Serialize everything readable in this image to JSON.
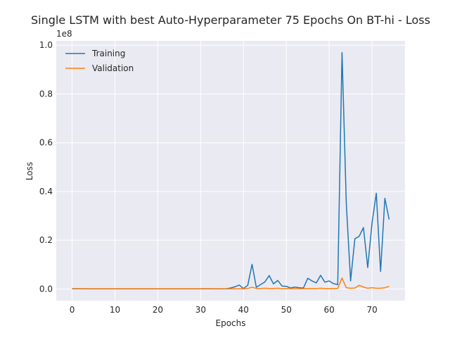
{
  "chart_data": {
    "type": "line",
    "title": "Single LSTM with best Auto-Hyperparameter 75 Epochs On BT-hi - Loss",
    "xlabel": "Epochs",
    "ylabel": "Loss",
    "offset_label": "1e8",
    "xlim": [
      -3.7,
      77.7
    ],
    "ylim": [
      -0.048,
      1.018
    ],
    "x_ticks": [
      0,
      10,
      20,
      30,
      40,
      50,
      60,
      70
    ],
    "y_ticks": [
      0.0,
      0.2,
      0.4,
      0.6,
      0.8,
      1.0
    ],
    "y_tick_labels": [
      "0.0",
      "0.2",
      "0.4",
      "0.6",
      "0.8",
      "1.0"
    ],
    "grid": true,
    "legend_position": "top-left",
    "colors": {
      "background": "#eaeaf2",
      "grid": "#ffffff"
    },
    "x": [
      0,
      1,
      2,
      3,
      4,
      5,
      6,
      7,
      8,
      9,
      10,
      11,
      12,
      13,
      14,
      15,
      16,
      17,
      18,
      19,
      20,
      21,
      22,
      23,
      24,
      25,
      26,
      27,
      28,
      29,
      30,
      31,
      32,
      33,
      34,
      35,
      36,
      37,
      38,
      39,
      40,
      41,
      42,
      43,
      44,
      45,
      46,
      47,
      48,
      49,
      50,
      51,
      52,
      53,
      54,
      55,
      56,
      57,
      58,
      59,
      60,
      61,
      62,
      63,
      64,
      65,
      66,
      67,
      68,
      69,
      70,
      71,
      72,
      73,
      74
    ],
    "series": [
      {
        "name": "Training",
        "color": "#1f77b4",
        "values": [
          0.0015,
          0.0012,
          0.001,
          0.001,
          0.0009,
          0.0009,
          0.0009,
          0.0008,
          0.0008,
          0.0008,
          0.0008,
          0.0008,
          0.0008,
          0.0008,
          0.0008,
          0.0008,
          0.0008,
          0.0008,
          0.0008,
          0.0008,
          0.0008,
          0.0008,
          0.0008,
          0.0008,
          0.0008,
          0.0008,
          0.0008,
          0.0008,
          0.0008,
          0.0008,
          0.0008,
          0.001,
          0.001,
          0.0008,
          0.0008,
          0.0008,
          0.001,
          0.004,
          0.009,
          0.016,
          0.002,
          0.015,
          0.101,
          0.007,
          0.018,
          0.029,
          0.055,
          0.021,
          0.035,
          0.012,
          0.011,
          0.004,
          0.008,
          0.005,
          0.004,
          0.044,
          0.033,
          0.025,
          0.056,
          0.028,
          0.033,
          0.022,
          0.018,
          0.97,
          0.35,
          0.033,
          0.206,
          0.216,
          0.252,
          0.088,
          0.27,
          0.393,
          0.072,
          0.372,
          0.285
        ]
      },
      {
        "name": "Validation",
        "color": "#ff7f0e",
        "values": [
          0.0008,
          0.0008,
          0.0008,
          0.0008,
          0.0008,
          0.0008,
          0.0008,
          0.0008,
          0.0008,
          0.0008,
          0.0008,
          0.0008,
          0.0008,
          0.0008,
          0.0008,
          0.0008,
          0.0008,
          0.0008,
          0.0008,
          0.0008,
          0.0008,
          0.0008,
          0.0008,
          0.0008,
          0.0008,
          0.0008,
          0.0008,
          0.0008,
          0.0008,
          0.0008,
          0.0008,
          0.0008,
          0.0008,
          0.0008,
          0.0008,
          0.0008,
          0.0008,
          0.0008,
          0.0008,
          0.0008,
          0.0008,
          0.002,
          0.007,
          0.002,
          0.002,
          0.003,
          0.002,
          0.002,
          0.003,
          0.001,
          0.002,
          0.001,
          0.001,
          0.001,
          0.001,
          0.002,
          0.002,
          0.002,
          0.003,
          0.002,
          0.002,
          0.002,
          0.002,
          0.045,
          0.005,
          0.003,
          0.004,
          0.015,
          0.008,
          0.003,
          0.005,
          0.003,
          0.003,
          0.005,
          0.011
        ]
      }
    ]
  }
}
